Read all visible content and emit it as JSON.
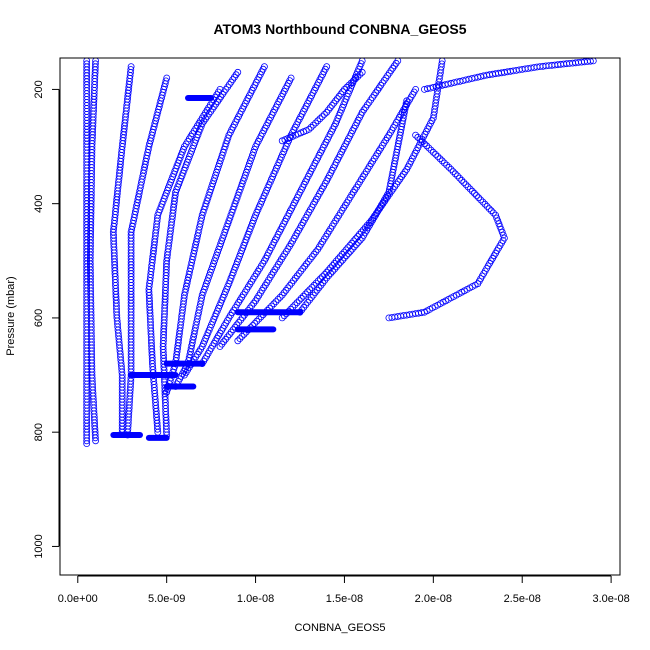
{
  "chart_data": {
    "type": "scatter",
    "title": "ATOM3 Northbound CONBNA_GEOS5",
    "xlabel": "CONBNA_GEOS5",
    "ylabel": "Pressure (mbar)",
    "xlim": [
      -1e-09,
      3.05e-08
    ],
    "ylim": [
      1050,
      145
    ],
    "y_reversed": true,
    "grid": false,
    "legend": "none",
    "marker": "open-circle",
    "color": "#0000ff",
    "x_ticks": [
      {
        "value": 0,
        "label": "0.0e+00"
      },
      {
        "value": 5e-09,
        "label": "5.0e-09"
      },
      {
        "value": 1e-08,
        "label": "1.0e-08"
      },
      {
        "value": 1.5e-08,
        "label": "1.5e-08"
      },
      {
        "value": 2e-08,
        "label": "2.0e-08"
      },
      {
        "value": 2.5e-08,
        "label": "2.5e-08"
      },
      {
        "value": 3e-08,
        "label": "3.0e-08"
      }
    ],
    "y_ticks": [
      {
        "value": 200,
        "label": "200"
      },
      {
        "value": 400,
        "label": "400"
      },
      {
        "value": 600,
        "label": "600"
      },
      {
        "value": 800,
        "label": "800"
      },
      {
        "value": 1000,
        "label": "1000"
      }
    ],
    "series": [
      {
        "values": [
          [
            5e-10,
            150
          ],
          [
            5e-10,
            400
          ],
          [
            5e-10,
            600
          ],
          [
            5e-10,
            800
          ],
          [
            5e-10,
            820
          ]
        ]
      },
      {
        "values": [
          [
            1e-09,
            150
          ],
          [
            8e-10,
            300
          ],
          [
            7e-10,
            500
          ],
          [
            8e-10,
            700
          ],
          [
            1e-09,
            815
          ]
        ]
      },
      {
        "values": [
          [
            3e-09,
            160
          ],
          [
            2.5e-09,
            300
          ],
          [
            2e-09,
            450
          ],
          [
            2.2e-09,
            600
          ],
          [
            2.5e-09,
            700
          ],
          [
            2.5e-09,
            800
          ]
        ]
      },
      {
        "values": [
          [
            5e-09,
            180
          ],
          [
            4e-09,
            300
          ],
          [
            3e-09,
            450
          ],
          [
            3e-09,
            600
          ],
          [
            3e-09,
            700
          ],
          [
            2.8e-09,
            805
          ]
        ]
      },
      {
        "values": [
          [
            8e-09,
            200
          ],
          [
            6e-09,
            300
          ],
          [
            4.5e-09,
            420
          ],
          [
            4e-09,
            550
          ],
          [
            4.2e-09,
            680
          ],
          [
            4.5e-09,
            800
          ]
        ]
      },
      {
        "values": [
          [
            9e-09,
            170
          ],
          [
            7e-09,
            260
          ],
          [
            5.5e-09,
            380
          ],
          [
            5e-09,
            500
          ],
          [
            4.8e-09,
            650
          ],
          [
            5e-09,
            805
          ]
        ]
      },
      {
        "values": [
          [
            1.05e-08,
            160
          ],
          [
            8.5e-09,
            280
          ],
          [
            7e-09,
            420
          ],
          [
            6e-09,
            560
          ],
          [
            5.5e-09,
            680
          ],
          [
            5e-09,
            730
          ]
        ]
      },
      {
        "values": [
          [
            1.2e-08,
            180
          ],
          [
            1e-08,
            300
          ],
          [
            8.5e-09,
            430
          ],
          [
            7e-09,
            560
          ],
          [
            6.2e-09,
            680
          ],
          [
            5.5e-09,
            720
          ]
        ]
      },
      {
        "values": [
          [
            1.4e-08,
            160
          ],
          [
            1.2e-08,
            280
          ],
          [
            1e-08,
            420
          ],
          [
            8.5e-09,
            540
          ],
          [
            7e-09,
            650
          ],
          [
            6e-09,
            700
          ]
        ]
      },
      {
        "values": [
          [
            1.6e-08,
            150
          ],
          [
            1.45e-08,
            260
          ],
          [
            1.25e-08,
            380
          ],
          [
            1.05e-08,
            500
          ],
          [
            8.5e-09,
            600
          ],
          [
            7e-09,
            680
          ]
        ]
      },
      {
        "values": [
          [
            1.8e-08,
            150
          ],
          [
            1.6e-08,
            240
          ],
          [
            1.4e-08,
            360
          ],
          [
            1.2e-08,
            470
          ],
          [
            1e-08,
            570
          ],
          [
            8e-09,
            650
          ]
        ]
      },
      {
        "values": [
          [
            1.9e-08,
            200
          ],
          [
            1.75e-08,
            280
          ],
          [
            1.55e-08,
            380
          ],
          [
            1.35e-08,
            480
          ],
          [
            1.15e-08,
            560
          ],
          [
            9e-09,
            640
          ]
        ]
      },
      {
        "values": [
          [
            2.05e-08,
            150
          ],
          [
            2e-08,
            250
          ],
          [
            1.85e-08,
            340
          ],
          [
            1.65e-08,
            430
          ],
          [
            1.4e-08,
            520
          ],
          [
            1.15e-08,
            600
          ]
        ]
      },
      {
        "values": [
          [
            1.9e-08,
            280
          ],
          [
            2.1e-08,
            340
          ],
          [
            2.35e-08,
            420
          ],
          [
            2.4e-08,
            460
          ],
          [
            2.25e-08,
            540
          ],
          [
            1.95e-08,
            590
          ],
          [
            1.75e-08,
            600
          ]
        ]
      },
      {
        "values": [
          [
            1.85e-08,
            220
          ],
          [
            1.8e-08,
            300
          ],
          [
            1.75e-08,
            380
          ],
          [
            1.6e-08,
            460
          ],
          [
            1.4e-08,
            530
          ],
          [
            1.25e-08,
            590
          ]
        ]
      },
      {
        "values": [
          [
            1.15e-08,
            290
          ],
          [
            1.3e-08,
            270
          ],
          [
            1.4e-08,
            240
          ],
          [
            1.5e-08,
            200
          ],
          [
            1.6e-08,
            170
          ]
        ]
      },
      {
        "values": [
          [
            1.95e-08,
            200
          ],
          [
            2.3e-08,
            175
          ],
          [
            2.6e-08,
            160
          ],
          [
            2.9e-08,
            150
          ]
        ]
      }
    ],
    "horizontal_segments": [
      {
        "y": 215,
        "x": [
          6.2e-09,
          7.5e-09
        ]
      },
      {
        "y": 590,
        "x": [
          9e-09,
          1.25e-08
        ]
      },
      {
        "y": 620,
        "x": [
          9e-09,
          1.1e-08
        ]
      },
      {
        "y": 680,
        "x": [
          5e-09,
          7e-09
        ]
      },
      {
        "y": 700,
        "x": [
          3e-09,
          5.5e-09
        ]
      },
      {
        "y": 720,
        "x": [
          5e-09,
          6.5e-09
        ]
      },
      {
        "y": 805,
        "x": [
          2e-09,
          3.5e-09
        ]
      },
      {
        "y": 810,
        "x": [
          4e-09,
          5e-09
        ]
      }
    ]
  }
}
